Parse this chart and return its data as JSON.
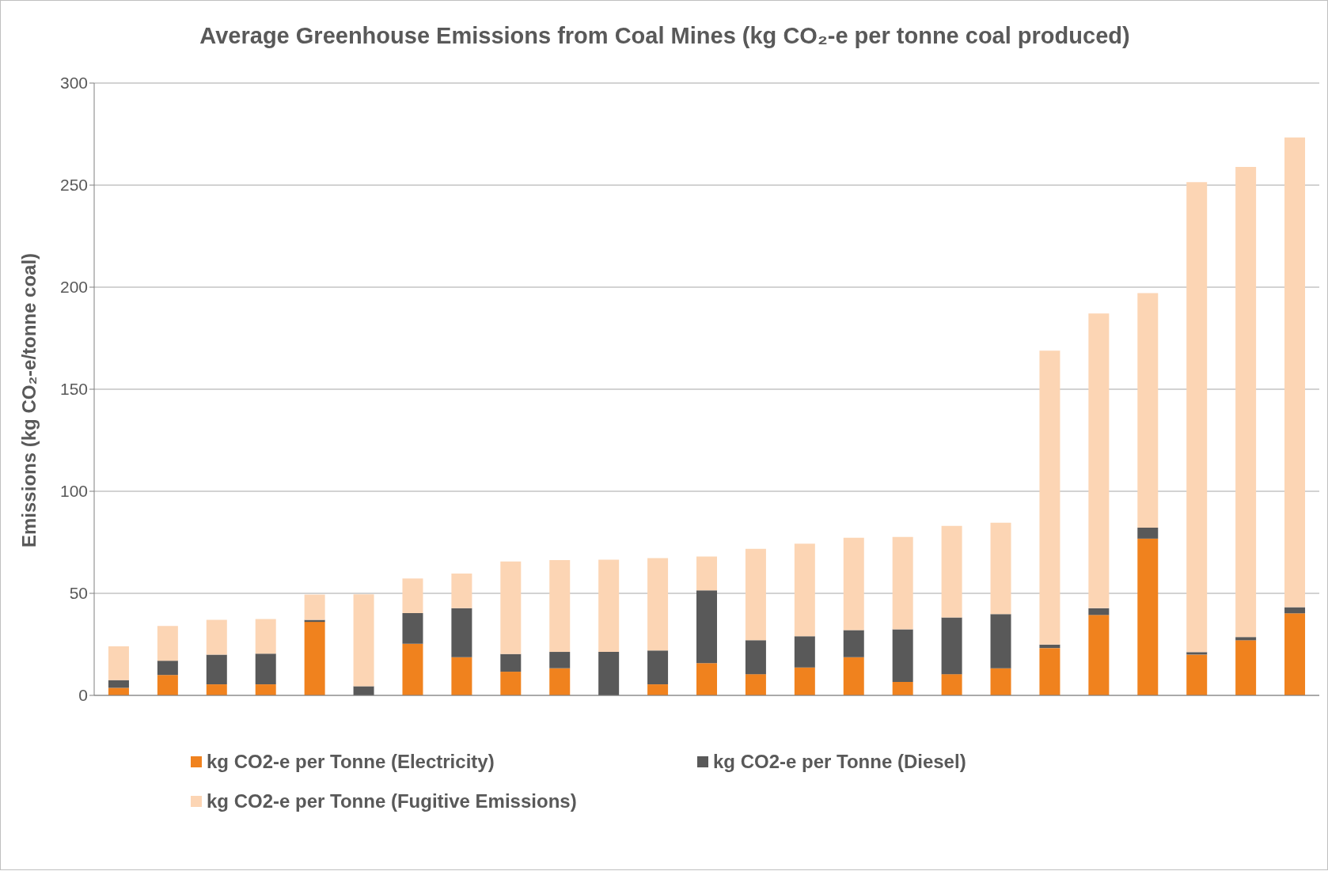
{
  "chart_data": {
    "type": "bar",
    "title": "Average Greenhouse Emissions  from Coal Mines (kg CO₂-e per tonne coal produced)",
    "ylabel": "Emissions (kg CO₂-e/tonne coal)",
    "stacked": true,
    "grid": "y",
    "legend": "bottom",
    "ylim": [
      0,
      300
    ],
    "yticks": [
      0,
      50,
      100,
      150,
      200,
      250,
      300
    ],
    "categories": [
      null,
      null,
      null,
      null,
      null,
      null,
      null,
      null,
      null,
      null,
      null,
      null,
      null,
      null,
      null,
      null,
      null,
      null,
      null,
      null,
      null,
      null,
      null,
      null,
      null
    ],
    "series": [
      {
        "name": "kg CO2-e per Tonne (Electricity)",
        "color": "#f0821e",
        "values": [
          3.7,
          10,
          5.4,
          5.4,
          36,
          null,
          25.3,
          18.7,
          11.6,
          13.3,
          null,
          5.4,
          15.8,
          10.4,
          13.7,
          18.7,
          6.6,
          10.4,
          13.3,
          23.2,
          39.4,
          76.8,
          20,
          27,
          40.2
        ]
      },
      {
        "name": "kg CO2-e per Tonne (Diesel)",
        "color": "#595959",
        "values": [
          3.8,
          7,
          14.6,
          15,
          1,
          4.5,
          15,
          24,
          8.7,
          8,
          21.3,
          16.6,
          35.7,
          16.6,
          15.3,
          13.3,
          25.8,
          27.8,
          26.5,
          1.7,
          3.3,
          5.4,
          1.2,
          1.6,
          3
        ]
      },
      {
        "name": "kg CO2-e per Tonne (Fugitive Emissions)",
        "color": "#fcd5b4",
        "values": [
          16.5,
          17,
          17,
          17,
          12.4,
          45,
          17,
          17,
          45.3,
          45,
          45.2,
          45.2,
          16.5,
          44.8,
          45.3,
          45.2,
          45.2,
          44.8,
          44.8,
          144,
          144.4,
          114.9,
          230.3,
          230.3,
          230.2
        ]
      }
    ]
  }
}
